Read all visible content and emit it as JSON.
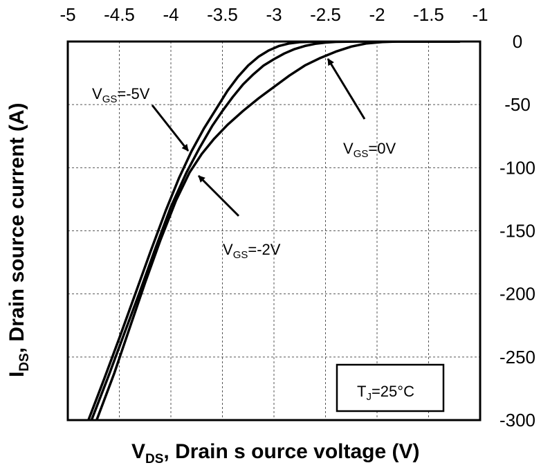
{
  "chart_data": {
    "type": "line",
    "title": "",
    "xlabel": {
      "main": "V",
      "sub": "DS",
      "rest": ", Drain s ource voltage (V)"
    },
    "ylabel": {
      "main": "I",
      "sub": "DS",
      "rest": ", Drain source current (A)"
    },
    "xlim": [
      -5,
      -1
    ],
    "ylim": [
      -300,
      0
    ],
    "x_ticks": [
      -5,
      -4.5,
      -4,
      -3.5,
      -3,
      -2.5,
      -2,
      -1.5,
      -1
    ],
    "x_tick_labels": [
      "-5",
      "-4.5",
      "-4",
      "-3.5",
      "-3",
      "-2.5",
      "-2",
      "-1.5",
      "-1"
    ],
    "y_ticks": [
      0,
      -50,
      -100,
      -150,
      -200,
      -250,
      -300
    ],
    "y_tick_labels": [
      "0",
      "-50",
      "-100",
      "-150",
      "-200",
      "-250",
      "-300"
    ],
    "x_axis_position": "top",
    "y_axis_position": "right",
    "grid": true,
    "series": [
      {
        "name": "VGS=-5V",
        "x": [
          -4.8,
          -4.65,
          -4.5,
          -4.35,
          -4.2,
          -4.05,
          -3.92,
          -3.8,
          -3.68,
          -3.55,
          -3.45,
          -3.35,
          -3.25,
          -3.15,
          -3.05,
          -2.95,
          -2.85,
          -2.75,
          -2.65,
          -2.5,
          -2.2,
          -1.8,
          -1.5,
          -1.2
        ],
        "y": [
          -300,
          -268,
          -235,
          -201,
          -167,
          -134,
          -108,
          -87,
          -69,
          -52,
          -39,
          -28,
          -19,
          -12,
          -7,
          -3.5,
          -1.5,
          -0.5,
          -0.2,
          0,
          0,
          0,
          0,
          0
        ]
      },
      {
        "name": "VGS=-2V",
        "x": [
          -4.77,
          -4.6,
          -4.45,
          -4.3,
          -4.15,
          -4.0,
          -3.85,
          -3.72,
          -3.6,
          -3.5,
          -3.4,
          -3.3,
          -3.2,
          -3.1,
          -3.0,
          -2.9,
          -2.8,
          -2.7,
          -2.6,
          -2.5,
          -2.4,
          -2.2,
          -2.0,
          -1.8,
          -1.5,
          -1.2
        ],
        "y": [
          -300,
          -264,
          -231,
          -198,
          -164,
          -131,
          -104,
          -84,
          -67,
          -55,
          -44,
          -34,
          -26,
          -19,
          -14,
          -9.5,
          -6,
          -3.5,
          -1.8,
          -0.8,
          -0.3,
          0,
          0,
          0,
          0,
          0
        ]
      },
      {
        "name": "VGS=0V",
        "x": [
          -4.72,
          -4.55,
          -4.4,
          -4.25,
          -4.1,
          -3.95,
          -3.82,
          -3.7,
          -3.58,
          -3.45,
          -3.3,
          -3.15,
          -3.0,
          -2.85,
          -2.7,
          -2.55,
          -2.4,
          -2.25,
          -2.1,
          -1.95,
          -1.8,
          -1.6,
          -1.4,
          -1.2
        ],
        "y": [
          -300,
          -263,
          -227,
          -191,
          -157,
          -126,
          -104,
          -89,
          -77,
          -66,
          -55,
          -45,
          -36,
          -27,
          -19,
          -13,
          -8,
          -4,
          -1.5,
          -0.4,
          0,
          0,
          0,
          0
        ]
      }
    ],
    "annotations": [
      {
        "main": "V",
        "sub": "GS",
        "rest": "=-5V",
        "series": "VGS=-5V",
        "x": -3.8,
        "y": -87
      },
      {
        "main": "V",
        "sub": "GS",
        "rest": "=-2V",
        "series": "VGS=-2V",
        "x": -3.75,
        "y": -106
      },
      {
        "main": "V",
        "sub": "GS",
        "rest": "=0V",
        "series": "VGS=0V",
        "x": -2.48,
        "y": -14
      }
    ],
    "legend_box": {
      "main": "T",
      "sub": "J",
      "rest": "=25°C",
      "placement": "bottom-right"
    }
  },
  "colors": {
    "line": "#000000",
    "grid": "#555555",
    "background": "#ffffff"
  }
}
